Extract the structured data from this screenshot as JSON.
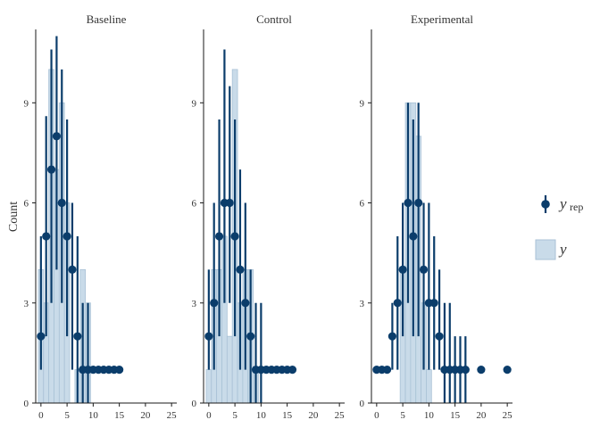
{
  "colors": {
    "rep_point": "#0b3d6b",
    "rep_line": "#0b3d6b",
    "y_fill": "#c9dbe9",
    "y_stroke": "#a9c2d6",
    "axis": "#1a1a1a",
    "text": "#333333"
  },
  "chart_data": {
    "type": "bar",
    "ylabel": "Count",
    "xlim": [
      -1,
      26
    ],
    "ylim": [
      0,
      11.2
    ],
    "x_ticks": [
      0,
      5,
      10,
      15,
      20,
      25
    ],
    "y_ticks": [
      0,
      3,
      6,
      9
    ],
    "legend": {
      "position": "right",
      "items": [
        {
          "key": "yrep",
          "label": "y",
          "sub": "rep",
          "style": "pointrange"
        },
        {
          "key": "y",
          "label": "y",
          "style": "bar"
        }
      ]
    },
    "panels": [
      {
        "title": "Baseline",
        "y_bars": [
          {
            "x": 0,
            "v": 4
          },
          {
            "x": 1,
            "v": 3
          },
          {
            "x": 2,
            "v": 10
          },
          {
            "x": 3,
            "v": 7
          },
          {
            "x": 4,
            "v": 9
          },
          {
            "x": 5,
            "v": 6
          },
          {
            "x": 7,
            "v": 1
          },
          {
            "x": 8,
            "v": 4
          },
          {
            "x": 9,
            "v": 3
          }
        ],
        "yrep": [
          {
            "x": 0,
            "median": 2,
            "lo": 1,
            "hi": 5
          },
          {
            "x": 1,
            "median": 5,
            "lo": 2,
            "hi": 8.6
          },
          {
            "x": 2,
            "median": 7,
            "lo": 3,
            "hi": 10.6
          },
          {
            "x": 3,
            "median": 8,
            "lo": 4,
            "hi": 11
          },
          {
            "x": 4,
            "median": 6,
            "lo": 3,
            "hi": 10
          },
          {
            "x": 5,
            "median": 5,
            "lo": 2,
            "hi": 8.5
          },
          {
            "x": 6,
            "median": 4,
            "lo": 1,
            "hi": 6
          },
          {
            "x": 7,
            "median": 2,
            "lo": 0,
            "hi": 5
          },
          {
            "x": 8,
            "median": 1,
            "lo": 0,
            "hi": 3
          },
          {
            "x": 9,
            "median": 1,
            "lo": 0,
            "hi": 3
          },
          {
            "x": 10,
            "median": 1,
            "lo": 1,
            "hi": 1
          },
          {
            "x": 11,
            "median": 1,
            "lo": 1,
            "hi": 1
          },
          {
            "x": 12,
            "median": 1,
            "lo": 1,
            "hi": 1
          },
          {
            "x": 13,
            "median": 1,
            "lo": 1,
            "hi": 1
          },
          {
            "x": 14,
            "median": 1,
            "lo": 1,
            "hi": 1
          },
          {
            "x": 15,
            "median": 1,
            "lo": 1,
            "hi": 1
          }
        ]
      },
      {
        "title": "Control",
        "y_bars": [
          {
            "x": 0,
            "v": 1
          },
          {
            "x": 1,
            "v": 4
          },
          {
            "x": 2,
            "v": 4
          },
          {
            "x": 3,
            "v": 5
          },
          {
            "x": 4,
            "v": 2
          },
          {
            "x": 5,
            "v": 10
          },
          {
            "x": 6,
            "v": 3
          },
          {
            "x": 7,
            "v": 4
          },
          {
            "x": 8,
            "v": 4
          },
          {
            "x": 9,
            "v": 1
          }
        ],
        "yrep": [
          {
            "x": 0,
            "median": 2,
            "lo": 1,
            "hi": 4
          },
          {
            "x": 1,
            "median": 3,
            "lo": 1,
            "hi": 6
          },
          {
            "x": 2,
            "median": 5,
            "lo": 2,
            "hi": 8.5
          },
          {
            "x": 3,
            "median": 6,
            "lo": 3,
            "hi": 10.6
          },
          {
            "x": 4,
            "median": 6,
            "lo": 3,
            "hi": 9.5
          },
          {
            "x": 5,
            "median": 5,
            "lo": 2,
            "hi": 8.5
          },
          {
            "x": 6,
            "median": 4,
            "lo": 1,
            "hi": 7
          },
          {
            "x": 7,
            "median": 3,
            "lo": 1,
            "hi": 6
          },
          {
            "x": 8,
            "median": 2,
            "lo": 0,
            "hi": 4
          },
          {
            "x": 9,
            "median": 1,
            "lo": 0,
            "hi": 3
          },
          {
            "x": 10,
            "median": 1,
            "lo": 0,
            "hi": 3
          },
          {
            "x": 11,
            "median": 1,
            "lo": 1,
            "hi": 1
          },
          {
            "x": 12,
            "median": 1,
            "lo": 1,
            "hi": 1
          },
          {
            "x": 13,
            "median": 1,
            "lo": 1,
            "hi": 1
          },
          {
            "x": 14,
            "median": 1,
            "lo": 1,
            "hi": 1
          },
          {
            "x": 15,
            "median": 1,
            "lo": 1,
            "hi": 1
          },
          {
            "x": 16,
            "median": 1,
            "lo": 1,
            "hi": 1
          }
        ]
      },
      {
        "title": "Experimental",
        "y_bars": [
          {
            "x": 5,
            "v": 4
          },
          {
            "x": 6,
            "v": 9
          },
          {
            "x": 7,
            "v": 9
          },
          {
            "x": 8,
            "v": 8
          },
          {
            "x": 9,
            "v": 3
          },
          {
            "x": 10,
            "v": 1
          }
        ],
        "yrep": [
          {
            "x": 0,
            "median": 1,
            "lo": 1,
            "hi": 1
          },
          {
            "x": 1,
            "median": 1,
            "lo": 1,
            "hi": 1
          },
          {
            "x": 2,
            "median": 1,
            "lo": 1,
            "hi": 1
          },
          {
            "x": 3,
            "median": 2,
            "lo": 1,
            "hi": 3
          },
          {
            "x": 4,
            "median": 3,
            "lo": 1,
            "hi": 5
          },
          {
            "x": 5,
            "median": 4,
            "lo": 2,
            "hi": 6
          },
          {
            "x": 6,
            "median": 6,
            "lo": 3,
            "hi": 9
          },
          {
            "x": 7,
            "median": 5,
            "lo": 2,
            "hi": 8.5
          },
          {
            "x": 8,
            "median": 6,
            "lo": 2,
            "hi": 9
          },
          {
            "x": 9,
            "median": 4,
            "lo": 1,
            "hi": 6
          },
          {
            "x": 10,
            "median": 3,
            "lo": 1,
            "hi": 6
          },
          {
            "x": 11,
            "median": 3,
            "lo": 1,
            "hi": 5
          },
          {
            "x": 12,
            "median": 2,
            "lo": 1,
            "hi": 4
          },
          {
            "x": 13,
            "median": 1,
            "lo": 0,
            "hi": 3
          },
          {
            "x": 14,
            "median": 1,
            "lo": 0,
            "hi": 3
          },
          {
            "x": 15,
            "median": 1,
            "lo": 0,
            "hi": 2
          },
          {
            "x": 16,
            "median": 1,
            "lo": 0,
            "hi": 2
          },
          {
            "x": 17,
            "median": 1,
            "lo": 0,
            "hi": 2
          },
          {
            "x": 20,
            "median": 1,
            "lo": 1,
            "hi": 1
          },
          {
            "x": 25,
            "median": 1,
            "lo": 1,
            "hi": 1
          }
        ]
      }
    ]
  }
}
